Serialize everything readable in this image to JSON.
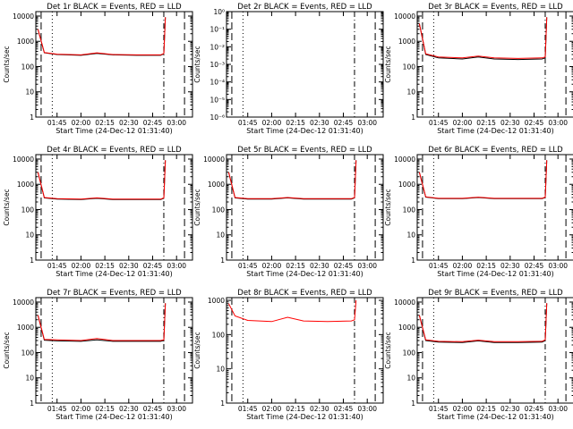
{
  "colors": {
    "events": "#000000",
    "lld": "#ff0000",
    "axis": "#000000",
    "background": "#ffffff"
  },
  "xlabel": "Start Time (24-Dec-12 01:31:40)",
  "ylabel": "Counts/sec",
  "x_ticks": [
    "01:45",
    "02:00",
    "02:15",
    "02:30",
    "02:45",
    "03:00"
  ],
  "chart_data": [
    {
      "type": "line",
      "title": "Det 1r BLACK = Events, RED = LLD",
      "ylabel": "Counts/sec",
      "xlabel": "Start Time (24-Dec-12 01:31:40)",
      "ylog": true,
      "ylim": [
        1,
        15000
      ],
      "y_ticks": [
        "1",
        "10",
        "100",
        "1000",
        "10000"
      ],
      "series": [
        {
          "x": [
            "01:33",
            "01:37",
            "01:45",
            "02:00",
            "02:10",
            "02:20",
            "02:35",
            "02:50",
            "02:52",
            "02:53"
          ],
          "values": [
            3000,
            350,
            300,
            280,
            330,
            290,
            280,
            280,
            320,
            9000
          ]
        },
        {
          "x": [
            "01:33",
            "01:37",
            "01:45",
            "02:00",
            "02:10",
            "02:20",
            "02:35",
            "02:50",
            "02:52",
            "02:53"
          ],
          "values": [
            3000,
            360,
            310,
            290,
            350,
            300,
            290,
            290,
            330,
            9000
          ]
        }
      ]
    },
    {
      "type": "line",
      "title": "Det 2r BLACK = Events, RED = LLD",
      "ylabel": "Counts/sec",
      "xlabel": "Start Time (24-Dec-12 01:31:40)",
      "ylog": true,
      "ylim": [
        1e-06,
        1
      ],
      "y_ticks": [
        "10⁻⁶",
        "10⁻⁵",
        "10⁻⁴",
        "10⁻³",
        "10⁻²",
        "10⁻¹",
        "10⁰"
      ],
      "series": []
    },
    {
      "type": "line",
      "title": "Det 3r BLACK = Events, RED = LLD",
      "ylabel": "Counts/sec",
      "xlabel": "Start Time (24-Dec-12 01:31:40)",
      "ylog": true,
      "ylim": [
        1,
        15000
      ],
      "y_ticks": [
        "1",
        "10",
        "100",
        "1000",
        "10000"
      ],
      "series": [
        {
          "x": [
            "01:33",
            "01:37",
            "01:45",
            "02:00",
            "02:10",
            "02:20",
            "02:35",
            "02:50",
            "02:52",
            "02:53"
          ],
          "values": [
            5000,
            300,
            220,
            200,
            240,
            200,
            190,
            200,
            220,
            9000
          ]
        },
        {
          "x": [
            "01:33",
            "01:37",
            "01:45",
            "02:00",
            "02:10",
            "02:20",
            "02:35",
            "02:50",
            "02:52",
            "02:53"
          ],
          "values": [
            5000,
            320,
            240,
            220,
            260,
            220,
            210,
            220,
            240,
            9000
          ]
        }
      ]
    },
    {
      "type": "line",
      "title": "Det 4r BLACK = Events, RED = LLD",
      "ylabel": "Counts/sec",
      "xlabel": "Start Time (24-Dec-12 01:31:40)",
      "ylog": true,
      "ylim": [
        1,
        15000
      ],
      "y_ticks": [
        "1",
        "10",
        "100",
        "1000",
        "10000"
      ],
      "series": [
        {
          "x": [
            "01:33",
            "01:37",
            "01:45",
            "02:00",
            "02:10",
            "02:20",
            "02:35",
            "02:50",
            "02:52",
            "02:53"
          ],
          "values": [
            3000,
            290,
            260,
            250,
            280,
            250,
            250,
            250,
            280,
            9000
          ]
        },
        {
          "x": [
            "01:33",
            "01:37",
            "01:45",
            "02:00",
            "02:10",
            "02:20",
            "02:35",
            "02:50",
            "02:52",
            "02:53"
          ],
          "values": [
            3000,
            300,
            270,
            260,
            290,
            260,
            260,
            260,
            290,
            9000
          ]
        }
      ]
    },
    {
      "type": "line",
      "title": "Det 5r BLACK = Events, RED = LLD",
      "ylabel": "Counts/sec",
      "xlabel": "Start Time (24-Dec-12 01:31:40)",
      "ylog": true,
      "ylim": [
        1,
        15000
      ],
      "y_ticks": [
        "1",
        "10",
        "100",
        "1000",
        "10000"
      ],
      "series": [
        {
          "x": [
            "01:33",
            "01:37",
            "01:45",
            "02:00",
            "02:10",
            "02:20",
            "02:35",
            "02:50",
            "02:52",
            "02:53"
          ],
          "values": [
            3000,
            290,
            260,
            260,
            290,
            260,
            260,
            260,
            290,
            9000
          ]
        },
        {
          "x": [
            "01:33",
            "01:37",
            "01:45",
            "02:00",
            "02:10",
            "02:20",
            "02:35",
            "02:50",
            "02:52",
            "02:53"
          ],
          "values": [
            3000,
            300,
            270,
            270,
            300,
            270,
            270,
            270,
            300,
            9000
          ]
        }
      ]
    },
    {
      "type": "line",
      "title": "Det 6r BLACK = Events, RED = LLD",
      "ylabel": "Counts/sec",
      "xlabel": "Start Time (24-Dec-12 01:31:40)",
      "ylog": true,
      "ylim": [
        1,
        15000
      ],
      "y_ticks": [
        "1",
        "10",
        "100",
        "1000",
        "10000"
      ],
      "series": [
        {
          "x": [
            "01:33",
            "01:37",
            "01:45",
            "02:00",
            "02:10",
            "02:20",
            "02:35",
            "02:50",
            "02:52",
            "02:53"
          ],
          "values": [
            3000,
            310,
            270,
            270,
            300,
            270,
            270,
            270,
            300,
            9000
          ]
        },
        {
          "x": [
            "01:33",
            "01:37",
            "01:45",
            "02:00",
            "02:10",
            "02:20",
            "02:35",
            "02:50",
            "02:52",
            "02:53"
          ],
          "values": [
            3000,
            320,
            280,
            280,
            310,
            280,
            280,
            280,
            310,
            9000
          ]
        }
      ]
    },
    {
      "type": "line",
      "title": "Det 7r BLACK = Events, RED = LLD",
      "ylabel": "Counts/sec",
      "xlabel": "Start Time (24-Dec-12 01:31:40)",
      "ylog": true,
      "ylim": [
        1,
        15000
      ],
      "y_ticks": [
        "1",
        "10",
        "100",
        "1000",
        "10000"
      ],
      "series": [
        {
          "x": [
            "01:33",
            "01:37",
            "01:45",
            "02:00",
            "02:10",
            "02:20",
            "02:35",
            "02:50",
            "02:52",
            "02:53"
          ],
          "values": [
            3000,
            310,
            290,
            280,
            320,
            280,
            280,
            280,
            300,
            9000
          ]
        },
        {
          "x": [
            "01:33",
            "01:37",
            "01:45",
            "02:00",
            "02:10",
            "02:20",
            "02:35",
            "02:50",
            "02:52",
            "02:53"
          ],
          "values": [
            3000,
            330,
            320,
            300,
            360,
            300,
            300,
            300,
            320,
            9000
          ]
        }
      ]
    },
    {
      "type": "line",
      "title": "Det 8r BLACK = Events, RED = LLD",
      "ylabel": "Counts/sec",
      "xlabel": "Start Time (24-Dec-12 01:31:40)",
      "ylog": true,
      "ylim": [
        1,
        1200
      ],
      "y_ticks": [
        "1",
        "10",
        "100",
        "1000"
      ],
      "series": [
        {
          "x": [
            "01:33",
            "01:37",
            "01:45",
            "02:00",
            "02:10",
            "02:20",
            "02:35",
            "02:50",
            "02:52",
            "02:53"
          ],
          "values": [
            800,
            350,
            260,
            240,
            320,
            250,
            240,
            250,
            270,
            1000
          ]
        }
      ]
    },
    {
      "type": "line",
      "title": "Det 9r BLACK = Events, RED = LLD",
      "ylabel": "Counts/sec",
      "xlabel": "Start Time (24-Dec-12 01:31:40)",
      "ylog": true,
      "ylim": [
        1,
        15000
      ],
      "y_ticks": [
        "1",
        "10",
        "100",
        "1000",
        "10000"
      ],
      "series": [
        {
          "x": [
            "01:33",
            "01:37",
            "01:45",
            "02:00",
            "02:10",
            "02:20",
            "02:35",
            "02:50",
            "02:52",
            "02:53"
          ],
          "values": [
            3000,
            300,
            260,
            250,
            290,
            250,
            250,
            260,
            300,
            9000
          ]
        },
        {
          "x": [
            "01:33",
            "01:37",
            "01:45",
            "02:00",
            "02:10",
            "02:20",
            "02:35",
            "02:50",
            "02:52",
            "02:53"
          ],
          "values": [
            3000,
            320,
            280,
            270,
            310,
            270,
            270,
            280,
            320,
            9000
          ]
        }
      ]
    }
  ]
}
